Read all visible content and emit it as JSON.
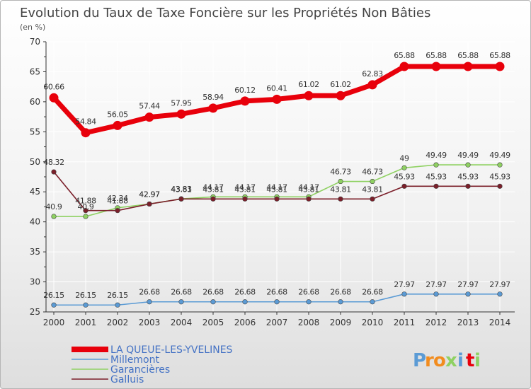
{
  "chart_data": {
    "type": "line",
    "title": "Evolution du Taux de Taxe Foncière sur les Propriétés Non Bâties",
    "subtitle": "(en %)",
    "xlabel": "",
    "ylabel": "(en %)",
    "ylim": [
      25,
      70
    ],
    "yticks": [
      25,
      30,
      35,
      40,
      45,
      50,
      55,
      60,
      65,
      70
    ],
    "x": [
      "2000",
      "2001",
      "2002",
      "2003",
      "2004",
      "2005",
      "2006",
      "2007",
      "2008",
      "2009",
      "2010",
      "2011",
      "2012",
      "2013",
      "2014"
    ],
    "grid": true,
    "legend_position": "bottom-left",
    "series": [
      {
        "name": "LA QUEUE-LES-YVELINES",
        "color": "#e8000b",
        "values": [
          60.66,
          54.84,
          56.05,
          57.44,
          57.95,
          58.94,
          60.12,
          60.41,
          61.02,
          61.02,
          62.83,
          65.88,
          65.88,
          65.88,
          65.88
        ],
        "labels": [
          "60.66",
          "54.84",
          "56.05",
          "57.44",
          "57.95",
          "58.94",
          "60.12",
          "60.41",
          "61.02",
          "61.02",
          "62.83",
          "65.88",
          "65.88",
          "65.88",
          "65.88"
        ]
      },
      {
        "name": "Millemont",
        "color": "#5b9bd5",
        "values": [
          26.15,
          26.15,
          26.15,
          26.68,
          26.68,
          26.68,
          26.68,
          26.68,
          26.68,
          26.68,
          26.68,
          27.97,
          27.97,
          27.97,
          27.97
        ],
        "labels": [
          "26.15",
          "26.15",
          "26.15",
          "26.68",
          "26.68",
          "26.68",
          "26.68",
          "26.68",
          "26.68",
          "26.68",
          "26.68",
          "27.97",
          "27.97",
          "27.97",
          "27.97"
        ]
      },
      {
        "name": "Garancières",
        "color": "#8fd162",
        "values": [
          40.9,
          40.9,
          42.34,
          42.97,
          43.83,
          44.17,
          44.17,
          44.17,
          44.17,
          46.73,
          46.73,
          49,
          49.49,
          49.49,
          49.49
        ],
        "labels": [
          "40.9",
          "40.9",
          "42.34",
          "42.97",
          "43.83",
          "44.17",
          "44.17",
          "44.17",
          "44.17",
          "46.73",
          "46.73",
          "49",
          "49.49",
          "49.49",
          "49.49"
        ]
      },
      {
        "name": "Galluis",
        "color": "#7b1f2a",
        "values": [
          48.32,
          41.88,
          41.88,
          42.97,
          43.81,
          43.81,
          43.81,
          43.81,
          43.81,
          43.81,
          43.81,
          45.93,
          45.93,
          45.93,
          45.93
        ],
        "labels": [
          "48.32",
          "41.88",
          "41.88",
          "42.97",
          "43.81",
          "43.81",
          "43.81",
          "43.81",
          "43.81",
          "43.81",
          "43.81",
          "45.93",
          "45.93",
          "45.93",
          "45.93"
        ]
      }
    ]
  },
  "branding": {
    "logo_text": "Proxiti",
    "logo_letters": [
      "P",
      "r",
      "o",
      "x",
      "i",
      "t",
      "i"
    ],
    "logo_colors": [
      "#5b9bd5",
      "#f28c1e",
      "#f28c1e",
      "#8fd162",
      "#5b9bd5",
      "#e8000b",
      "#8fd162"
    ]
  }
}
